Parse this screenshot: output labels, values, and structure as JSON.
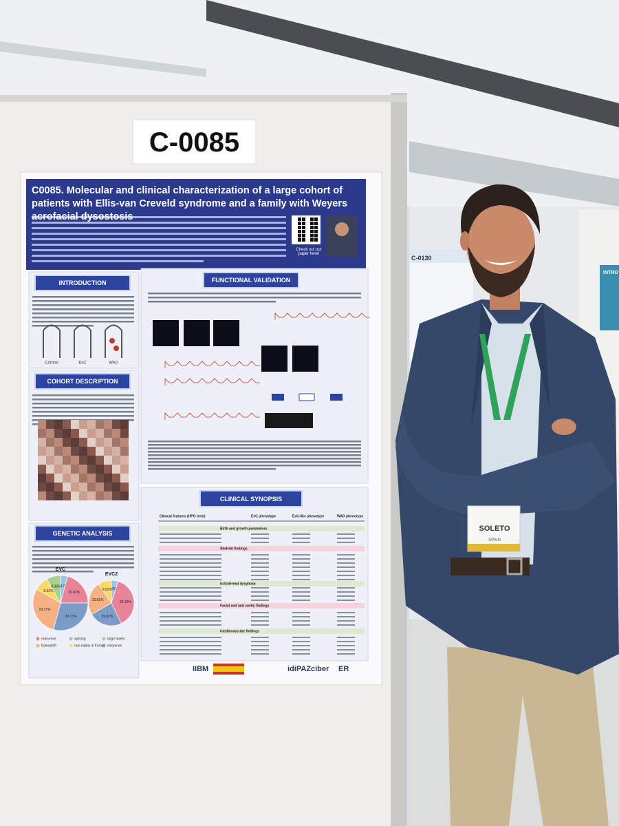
{
  "sign": "C-0085",
  "poster": {
    "title": "C0085. Molecular and clinical characterization of a large cohort of patients with Ellis-van Creveld syndrome and a family with Weyers acrofacial dysostosis",
    "qr_caption": "Check out our paper here!",
    "sections": {
      "introduction": "INTRODUCTION",
      "functional_validation": "FUNCTIONAL VALIDATION",
      "cohort_description": "COHORT DESCRIPTION",
      "genetic_analysis": "GENETIC ANALYSIS",
      "clinical_synopsis": "CLINICAL SYNOPSIS"
    },
    "intro_figure_labels": [
      "Control",
      "EvC",
      "WAD"
    ],
    "pies": [
      {
        "label": "EVC",
        "values": [
          4.17,
          20.83,
          29.17,
          29.17,
          8.33,
          8.33
        ],
        "value_labels": [
          "4.17%",
          "20.83%",
          "29.17%",
          "29.17%",
          "8.33%",
          "8.33%"
        ],
        "colors": [
          "#9dc3e6",
          "#e8849a",
          "#7a9cc6",
          "#f4b183",
          "#ffd966",
          "#a9d18e"
        ]
      },
      {
        "label": "EVC2",
        "values": [
          4.76,
          38.1,
          23.81,
          23.81,
          9.52
        ],
        "value_labels": [
          "4.76%",
          "38.10%",
          "23.81%",
          "23.81%",
          "9.52%"
        ],
        "colors": [
          "#9dc3e6",
          "#e8849a",
          "#7a9cc6",
          "#f4b183",
          "#ffd966"
        ]
      }
    ],
    "pie_legend": [
      "nonsense",
      "splicing",
      "large indels",
      "frameshift",
      "non-indels in frame",
      "missense"
    ],
    "table": {
      "headers": [
        "Clinical features (HPO term)",
        "EvC phenotype",
        "EvC-like phenotype",
        "WAD phenotype"
      ],
      "groups": [
        "Birth and growth parameters",
        "Skeletal findings",
        "Ectodermal dysplasia",
        "Facial and oral cavity findings",
        "Cardiovascular findings"
      ]
    },
    "logos": [
      "IIBM",
      "idiPAZ",
      "ciber",
      "ER"
    ]
  },
  "neighbor_poster": {
    "code": "C-0130",
    "intro": "INTRO"
  },
  "badge": {
    "name": "SOLETO",
    "country": "SPAIN"
  }
}
